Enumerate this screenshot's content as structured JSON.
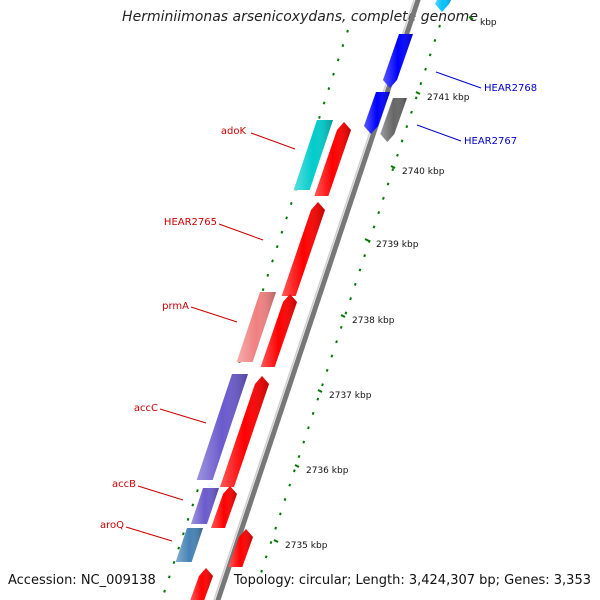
{
  "title": "Herminiimonas arsenicoxydans, complete genome",
  "footer": {
    "accession": "Accession: NC_009138",
    "topology": "Topology: circular; Length: 3,424,307 bp; Genes: 3,353"
  },
  "colors": {
    "forward_strand": "#ff0000",
    "reverse_strand": "#0000ff",
    "tick": "#007700",
    "label_forward": "#cc0000",
    "label_reverse": "#0000cc",
    "backbone": "#888888"
  },
  "ticks": [
    {
      "label": "kbp"
    },
    {
      "label": "2741 kbp"
    },
    {
      "label": "2740 kbp"
    },
    {
      "label": "2739 kbp"
    },
    {
      "label": "2738 kbp"
    },
    {
      "label": "2737 kbp"
    },
    {
      "label": "2736 kbp"
    },
    {
      "label": "2735 kbp"
    }
  ],
  "genes": [
    {
      "name": "HEAR2768",
      "strand": "reverse",
      "color": "#0000ff"
    },
    {
      "name": "HEAR2767",
      "strand": "reverse",
      "color": "#666666"
    },
    {
      "name": "adoK",
      "strand": "forward",
      "color": "#00cccc"
    },
    {
      "name": "HEAR2765",
      "strand": "forward",
      "color": "#ff0000"
    },
    {
      "name": "prmA",
      "strand": "forward",
      "color": "#f08080"
    },
    {
      "name": "accC",
      "strand": "forward",
      "color": "#6a5acd"
    },
    {
      "name": "accB",
      "strand": "forward",
      "color": "#6a5acd"
    },
    {
      "name": "aroQ",
      "strand": "forward",
      "color": "#4682b4"
    }
  ]
}
